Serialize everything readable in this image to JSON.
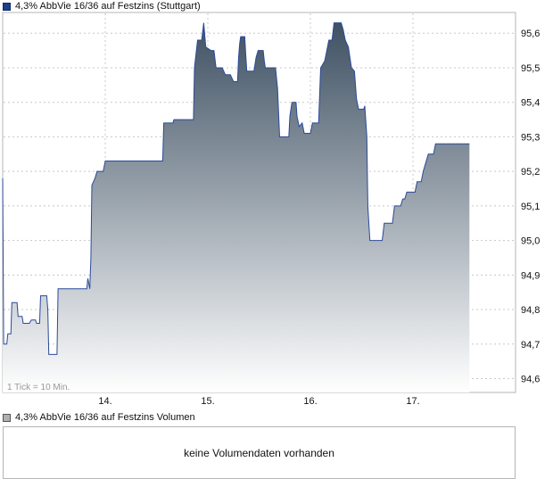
{
  "legend": {
    "price_label": "4,3% AbbVie 16/36 auf Festzins (Stuttgart)",
    "volume_label": "4,3% AbbVie 16/36 auf Festzins Volumen"
  },
  "volume_panel": {
    "message": "keine Volumendaten vorhanden"
  },
  "chart_note": "1 Tick = 10 Min.",
  "colors": {
    "line": "#2b4a9a",
    "fill_top": "#3f5163",
    "fill_bottom": "#ffffff",
    "grid": "#c8c8c8"
  },
  "chart_data": {
    "type": "area",
    "title": "",
    "xlabel": "",
    "ylabel": "",
    "ylim": [
      94.56,
      95.66
    ],
    "y_ticks": [
      "95,6",
      "95,5",
      "95,4",
      "95,3",
      "95,2",
      "95,1",
      "95,0",
      "94,9",
      "94,8",
      "94,7",
      "94,6"
    ],
    "x_ticks": [
      "14.",
      "15.",
      "16.",
      "17."
    ],
    "grid": true,
    "series": [
      {
        "values": [
          [
            13.0,
            95.18
          ],
          [
            13.01,
            94.7
          ],
          [
            13.04,
            94.7
          ],
          [
            13.05,
            94.73
          ],
          [
            13.08,
            94.73
          ],
          [
            13.09,
            94.82
          ],
          [
            13.14,
            94.82
          ],
          [
            13.15,
            94.78
          ],
          [
            13.19,
            94.78
          ],
          [
            13.2,
            94.76
          ],
          [
            13.26,
            94.76
          ],
          [
            13.28,
            94.77
          ],
          [
            13.32,
            94.77
          ],
          [
            13.33,
            94.76
          ],
          [
            13.36,
            94.76
          ],
          [
            13.37,
            94.84
          ],
          [
            13.43,
            94.84
          ],
          [
            13.44,
            94.8
          ],
          [
            13.45,
            94.67
          ],
          [
            13.53,
            94.67
          ],
          [
            13.54,
            94.86
          ],
          [
            13.82,
            94.86
          ],
          [
            13.83,
            94.89
          ],
          [
            13.85,
            94.86
          ],
          [
            13.86,
            94.95
          ],
          [
            13.87,
            95.16
          ],
          [
            13.9,
            95.18
          ],
          [
            13.92,
            95.2
          ],
          [
            13.98,
            95.2
          ],
          [
            14.0,
            95.23
          ],
          [
            14.56,
            95.23
          ],
          [
            14.57,
            95.34
          ],
          [
            14.66,
            95.34
          ],
          [
            14.67,
            95.35
          ],
          [
            14.86,
            95.35
          ],
          [
            14.87,
            95.5
          ],
          [
            14.9,
            95.58
          ],
          [
            14.94,
            95.58
          ],
          [
            14.96,
            95.63
          ],
          [
            14.98,
            95.56
          ],
          [
            15.03,
            95.55
          ],
          [
            15.06,
            95.55
          ],
          [
            15.08,
            95.5
          ],
          [
            15.14,
            95.5
          ],
          [
            15.17,
            95.48
          ],
          [
            15.22,
            95.48
          ],
          [
            15.25,
            95.46
          ],
          [
            15.29,
            95.46
          ],
          [
            15.3,
            95.53
          ],
          [
            15.31,
            95.57
          ],
          [
            15.32,
            95.59
          ],
          [
            15.36,
            95.59
          ],
          [
            15.37,
            95.54
          ],
          [
            15.38,
            95.49
          ],
          [
            15.45,
            95.49
          ],
          [
            15.47,
            95.53
          ],
          [
            15.49,
            95.55
          ],
          [
            15.54,
            95.55
          ],
          [
            15.55,
            95.52
          ],
          [
            15.56,
            95.5
          ],
          [
            15.66,
            95.5
          ],
          [
            15.68,
            95.44
          ],
          [
            15.7,
            95.3
          ],
          [
            15.79,
            95.3
          ],
          [
            15.8,
            95.36
          ],
          [
            15.82,
            95.4
          ],
          [
            15.86,
            95.4
          ],
          [
            15.87,
            95.36
          ],
          [
            15.89,
            95.33
          ],
          [
            15.92,
            95.34
          ],
          [
            15.94,
            95.31
          ],
          [
            16.0,
            95.31
          ],
          [
            16.02,
            95.34
          ],
          [
            16.08,
            95.34
          ],
          [
            16.1,
            95.5
          ],
          [
            16.14,
            95.52
          ],
          [
            16.18,
            95.58
          ],
          [
            16.21,
            95.58
          ],
          [
            16.23,
            95.63
          ],
          [
            16.3,
            95.63
          ],
          [
            16.32,
            95.61
          ],
          [
            16.34,
            95.58
          ],
          [
            16.37,
            95.56
          ],
          [
            16.4,
            95.5
          ],
          [
            16.43,
            95.49
          ],
          [
            16.45,
            95.41
          ],
          [
            16.47,
            95.38
          ],
          [
            16.52,
            95.38
          ],
          [
            16.53,
            95.39
          ],
          [
            16.55,
            95.3
          ],
          [
            16.56,
            95.1
          ],
          [
            16.58,
            95.0
          ],
          [
            16.7,
            95.0
          ],
          [
            16.72,
            95.05
          ],
          [
            16.8,
            95.05
          ],
          [
            16.82,
            95.1
          ],
          [
            16.88,
            95.1
          ],
          [
            16.9,
            95.12
          ],
          [
            16.92,
            95.12
          ],
          [
            16.94,
            95.14
          ],
          [
            17.02,
            95.14
          ],
          [
            17.04,
            95.17
          ],
          [
            17.08,
            95.17
          ],
          [
            17.1,
            95.2
          ],
          [
            17.15,
            95.25
          ],
          [
            17.2,
            95.25
          ],
          [
            17.22,
            95.28
          ],
          [
            17.55,
            95.28
          ]
        ]
      }
    ]
  }
}
